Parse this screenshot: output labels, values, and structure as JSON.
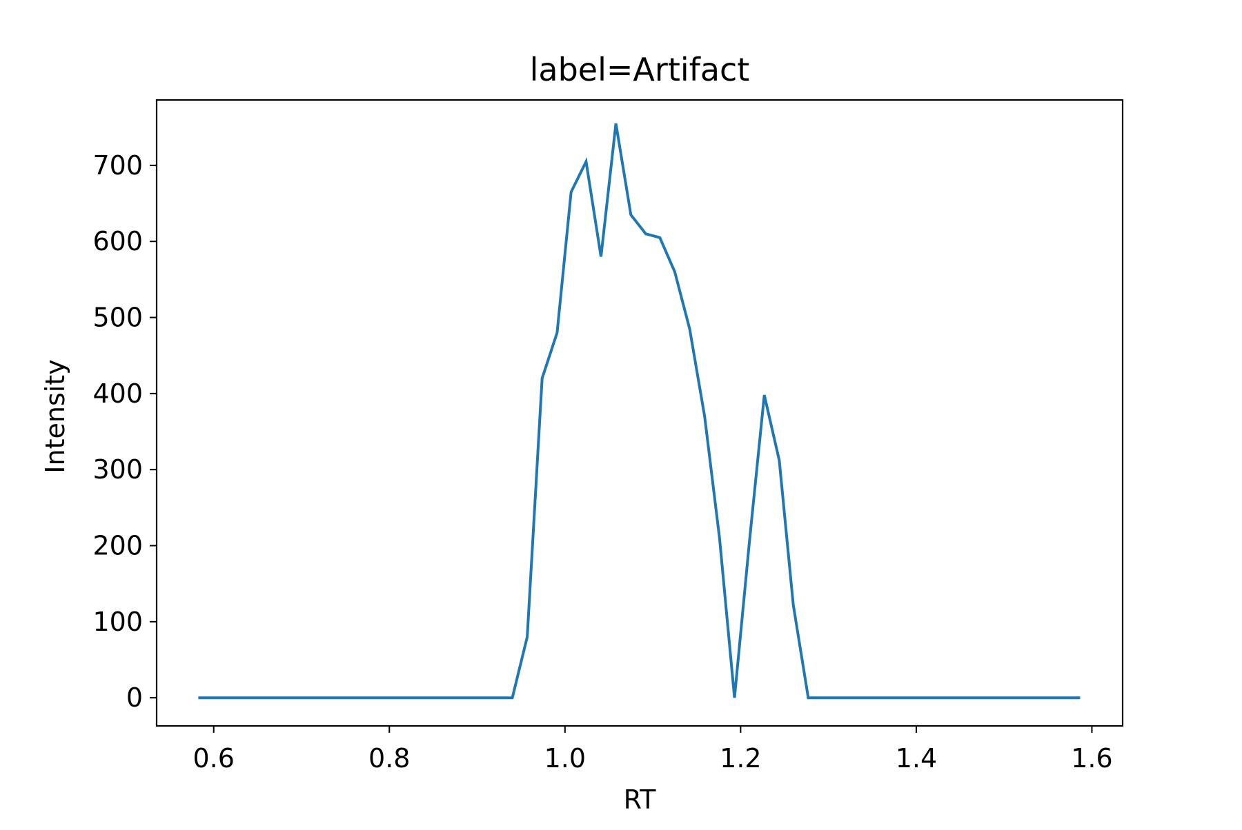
{
  "chart_data": {
    "type": "line",
    "title": "label=Artifact",
    "xlabel": "RT",
    "ylabel": "Intensity",
    "xlim": [
      0.535,
      1.635
    ],
    "ylim": [
      -37,
      786
    ],
    "grid": false,
    "legend": "none",
    "x_ticks": [
      {
        "value": 0.6,
        "label": "0.6"
      },
      {
        "value": 0.8,
        "label": "0.8"
      },
      {
        "value": 1.0,
        "label": "1.0"
      },
      {
        "value": 1.2,
        "label": "1.2"
      },
      {
        "value": 1.4,
        "label": "1.4"
      },
      {
        "value": 1.6,
        "label": "1.6"
      }
    ],
    "y_ticks": [
      {
        "value": 0,
        "label": "0"
      },
      {
        "value": 100,
        "label": "100"
      },
      {
        "value": 200,
        "label": "200"
      },
      {
        "value": 300,
        "label": "300"
      },
      {
        "value": 400,
        "label": "400"
      },
      {
        "value": 500,
        "label": "500"
      },
      {
        "value": 600,
        "label": "600"
      },
      {
        "value": 700,
        "label": "700"
      }
    ],
    "series": [
      {
        "color": "#1f77b4",
        "x": [
          0.584,
          0.94,
          0.957,
          0.974,
          0.991,
          1.007,
          1.024,
          1.041,
          1.058,
          1.075,
          1.092,
          1.108,
          1.125,
          1.142,
          1.159,
          1.176,
          1.193,
          1.21,
          1.227,
          1.244,
          1.26,
          1.277,
          1.585
        ],
        "y": [
          0,
          0,
          80,
          420,
          480,
          665,
          705,
          580,
          755,
          635,
          610,
          605,
          560,
          485,
          370,
          210,
          0,
          205,
          398,
          312,
          122,
          0,
          0
        ]
      }
    ]
  }
}
